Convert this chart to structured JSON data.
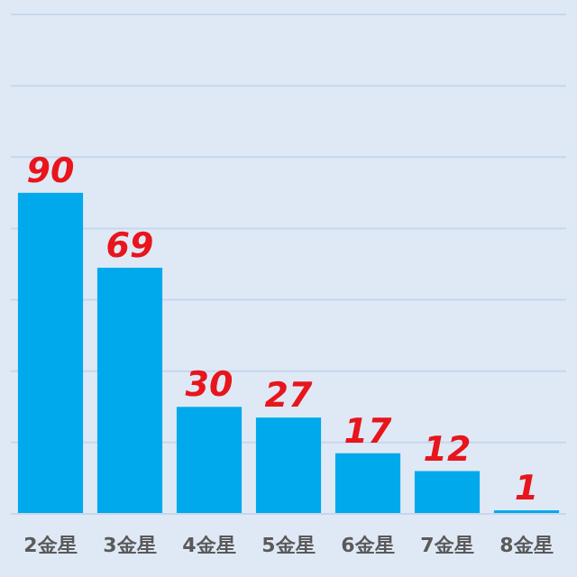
{
  "chart_data": {
    "type": "bar",
    "categories": [
      "2金星",
      "3金星",
      "4金星",
      "5金星",
      "6金星",
      "7金星",
      "8金星"
    ],
    "values": [
      90,
      69,
      30,
      27,
      17,
      12,
      1
    ],
    "color": "#00a9ec",
    "data_labels": true,
    "ylim": [
      0,
      140
    ],
    "yticks": [
      {
        "value": 0,
        "label": null
      },
      {
        "value": 20,
        "label": null
      },
      {
        "value": 40,
        "label": null
      },
      {
        "value": 60,
        "label": null
      },
      {
        "value": 80,
        "label": null
      },
      {
        "value": 100,
        "label": null
      },
      {
        "value": 120,
        "label": null
      },
      {
        "value": 140,
        "label": null
      }
    ],
    "grid": "y"
  }
}
